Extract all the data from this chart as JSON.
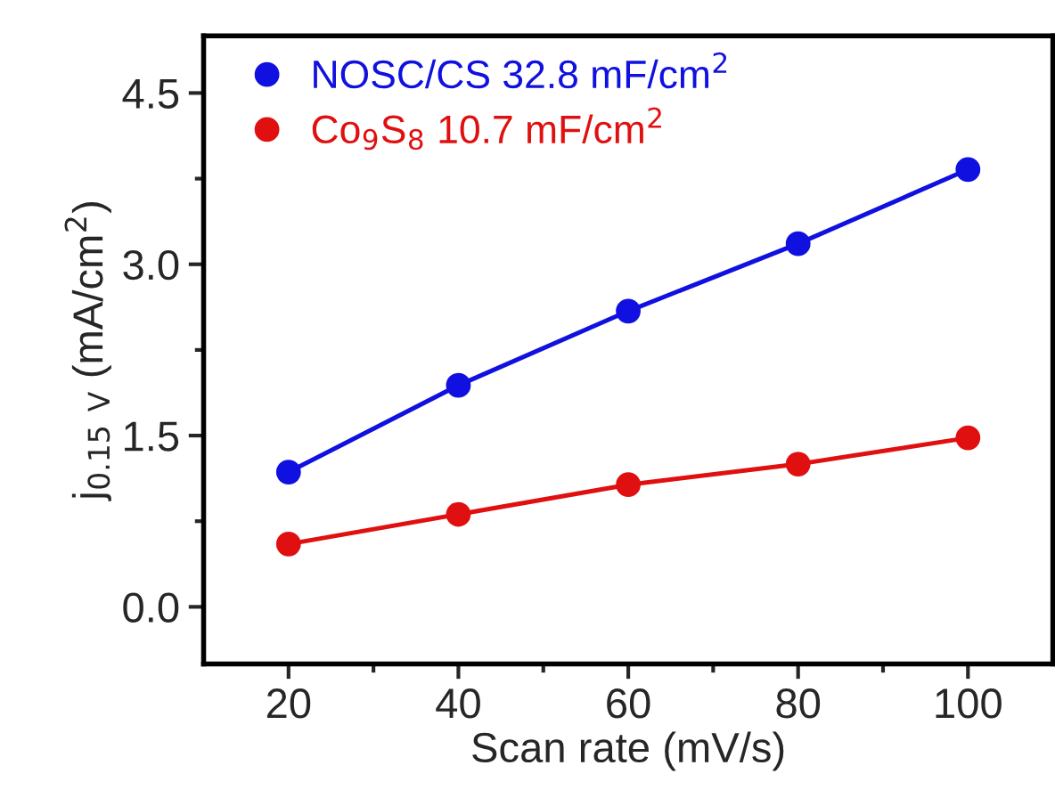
{
  "chart_data": {
    "type": "line",
    "xlabel": "Scan rate (mV/s)",
    "ylabel": "j$_{0.15 V}$ (mA/cm$^{2}$)",
    "x": [
      20,
      40,
      60,
      80,
      100
    ],
    "series": [
      {
        "name": "NOSC/CS 32.8 mF/cm$^{2}$",
        "color": "#1010e0",
        "values": [
          1.18,
          1.94,
          2.59,
          3.18,
          3.83
        ]
      },
      {
        "name": "Co$_{9}$S$_{8}$ 10.7 mF/cm$^{2}$",
        "color": "#e01010",
        "values": [
          0.55,
          0.81,
          1.07,
          1.25,
          1.48
        ]
      }
    ],
    "xlim": [
      10,
      110
    ],
    "xticks": [
      20,
      {
        "value": 30,
        "label": null
      },
      40,
      {
        "value": 50,
        "label": null
      },
      60,
      {
        "value": 70,
        "label": null
      },
      80,
      {
        "value": 90,
        "label": null
      },
      100
    ],
    "ylim": [
      -0.5,
      5.0
    ],
    "yticks": [
      {
        "value": 0.0,
        "label": "0.0"
      },
      {
        "value": 0.75,
        "label": null
      },
      1.5,
      {
        "value": 2.25,
        "label": null
      },
      {
        "value": 3.0,
        "label": "3.0"
      },
      {
        "value": 3.75,
        "label": null
      },
      4.5
    ],
    "marker": "circle",
    "line_style": "solid",
    "legend": "top left",
    "grid": false
  }
}
